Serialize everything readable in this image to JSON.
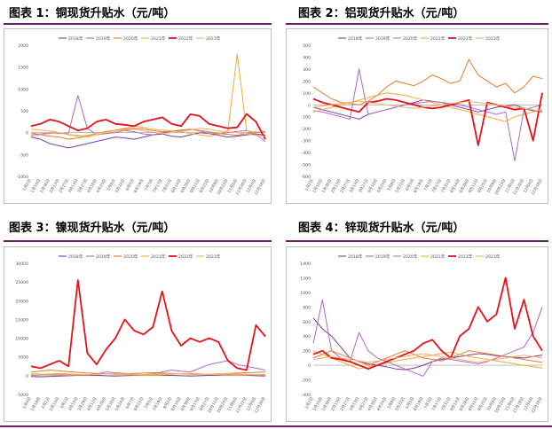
{
  "titles": [
    "图表 1：铜现货升贴水（元/吨）",
    "图表 2：铝现货升贴水（元/吨）",
    "图表 3：镍现货升贴水（元/吨）",
    "图表 4：锌现货升贴水（元/吨）"
  ],
  "colors": {
    "2018": "#7b3fa0",
    "2019": "#a96ad0",
    "2020": "#e37b2e",
    "2021": "#f3a93a",
    "2022": "#e8101a",
    "2023": "#f5b06a",
    "rule": "#6b1f6f"
  },
  "chart_data": [
    {
      "type": "line",
      "title": "图表 1：铜现货升贴水（元/吨）",
      "legend": [
        "2018年",
        "2019年",
        "2020年",
        "2021年",
        "2022年",
        "2023年"
      ],
      "legend_position": "top",
      "ylim": [
        -1000,
        2000
      ],
      "yticks": [
        "2000",
        "1500",
        "1000",
        "500",
        "0",
        "-500",
        "-1000"
      ],
      "xlabels": [
        "1月2日",
        "1月16日",
        "1月30日",
        "2月13日",
        "2月27日",
        "3月13日",
        "3月27日",
        "4月10日",
        "4月24日",
        "5月8日",
        "5月22日",
        "6月5日",
        "6月19日",
        "7月3日",
        "7月17日",
        "7月31日",
        "8月14日",
        "8月28日",
        "9月11日",
        "9月25日",
        "10月9日",
        "10月23日",
        "11月6日",
        "11月20日",
        "12月4日",
        "12月18日"
      ],
      "series": [
        {
          "name": "2018年",
          "values": [
            -100,
            -150,
            -250,
            -300,
            -350,
            -300,
            -250,
            -200,
            -150,
            -100,
            -120,
            -150,
            -100,
            -50,
            -30,
            -80,
            -100,
            -50,
            0,
            -20,
            -60,
            -100,
            -80,
            -50,
            -30,
            -60
          ]
        },
        {
          "name": "2019年",
          "values": [
            -50,
            -30,
            0,
            -20,
            -10,
            850,
            100,
            -50,
            -20,
            0,
            50,
            20,
            -30,
            -50,
            0,
            30,
            50,
            80,
            40,
            -20,
            -30,
            0,
            30,
            50,
            -40,
            -200
          ]
        },
        {
          "name": "2020年",
          "values": [
            0,
            -50,
            -80,
            -100,
            -150,
            -120,
            -80,
            -20,
            30,
            60,
            80,
            100,
            80,
            50,
            20,
            40,
            60,
            80,
            50,
            20,
            -20,
            -40,
            -60,
            -20,
            0,
            30
          ]
        },
        {
          "name": "2021年",
          "values": [
            80,
            60,
            40,
            0,
            -50,
            -80,
            -60,
            -20,
            20,
            60,
            100,
            150,
            120,
            80,
            60,
            40,
            20,
            -20,
            -50,
            -80,
            -40,
            50,
            1800,
            40,
            20,
            0
          ]
        },
        {
          "name": "2022年",
          "values": [
            150,
            200,
            300,
            250,
            150,
            50,
            100,
            250,
            300,
            200,
            180,
            150,
            250,
            300,
            350,
            200,
            150,
            420,
            380,
            200,
            150,
            100,
            120,
            430,
            250,
            -150
          ]
        },
        {
          "name": "2023年",
          "values": [
            -80,
            -50,
            -20,
            0,
            -40,
            -60,
            -100,
            -50,
            0,
            30,
            60,
            80,
            40,
            10,
            -20,
            0,
            30,
            60,
            100,
            80,
            40,
            20,
            0,
            -30,
            -60,
            -80
          ]
        }
      ]
    },
    {
      "type": "line",
      "title": "图表 2：铝现货升贴水（元/吨）",
      "legend": [
        "2018年",
        "2019年",
        "2020年",
        "2021年",
        "2022年",
        "2023年"
      ],
      "legend_position": "top",
      "ylim": [
        -600,
        500
      ],
      "yticks": [
        "500",
        "400",
        "300",
        "200",
        "100",
        "0",
        "-100",
        "-200",
        "-300",
        "-400",
        "-500",
        "-600"
      ],
      "xlabels": [
        "1月2日",
        "1月16日",
        "1月30日",
        "2月13日",
        "2月27日",
        "3月13日",
        "3月27日",
        "4月10日",
        "4月24日",
        "5月8日",
        "5月22日",
        "6月5日",
        "6月19日",
        "7月3日",
        "7月17日",
        "7月31日",
        "8月14日",
        "8月28日",
        "9月11日",
        "9月25日",
        "10月9日",
        "10月23日",
        "11月6日",
        "11月20日",
        "12月4日",
        "12月18日"
      ],
      "series": [
        {
          "name": "2018年",
          "values": [
            -20,
            -40,
            -60,
            -80,
            -100,
            -120,
            -80,
            -60,
            -40,
            -20,
            0,
            20,
            40,
            30,
            20,
            0,
            -20,
            -40,
            -60,
            -40,
            -20,
            -10,
            0,
            -30,
            -50,
            -60
          ]
        },
        {
          "name": "2019年",
          "values": [
            -50,
            -60,
            -80,
            -100,
            -120,
            300,
            -80,
            -60,
            -40,
            -20,
            0,
            10,
            20,
            30,
            20,
            10,
            0,
            -20,
            -40,
            -60,
            -80,
            -60,
            -470,
            -40,
            -20,
            0
          ]
        },
        {
          "name": "2020年",
          "values": [
            150,
            100,
            50,
            20,
            10,
            0,
            30,
            80,
            150,
            200,
            180,
            160,
            200,
            250,
            220,
            180,
            200,
            380,
            250,
            200,
            150,
            180,
            100,
            150,
            240,
            220
          ]
        },
        {
          "name": "2021年",
          "values": [
            -60,
            -40,
            -20,
            0,
            20,
            40,
            60,
            80,
            100,
            90,
            80,
            60,
            40,
            20,
            0,
            -20,
            -40,
            -60,
            -80,
            -100,
            -120,
            -140,
            -100,
            -80,
            -60,
            -40
          ]
        },
        {
          "name": "2022年",
          "values": [
            50,
            20,
            0,
            -20,
            -40,
            -60,
            20,
            30,
            50,
            40,
            20,
            0,
            -20,
            -30,
            -20,
            0,
            20,
            40,
            -340,
            20,
            0,
            -20,
            -40,
            -30,
            -300,
            100
          ]
        },
        {
          "name": "2023年",
          "values": [
            -20,
            -10,
            0,
            10,
            20,
            30,
            20,
            10,
            0,
            -10,
            -20,
            -30,
            -20,
            -10,
            0,
            10,
            20,
            30,
            20,
            10,
            0,
            -10,
            -20,
            -30,
            -40,
            -50
          ]
        }
      ]
    },
    {
      "type": "line",
      "title": "图表 3：镍现货升贴水（元/吨）",
      "legend": [
        "2018年",
        "2019年",
        "2020年",
        "2021年",
        "2022年",
        "2023年"
      ],
      "legend_position": "top",
      "ylim": [
        -5000,
        30000
      ],
      "yticks": [
        "30000",
        "25000",
        "20000",
        "15000",
        "10000",
        "5000",
        "0",
        "-5000"
      ],
      "xlabels": [
        "1月4日",
        "1月18日",
        "2月1日",
        "2月15日",
        "3月1日",
        "3月15日",
        "3月29日",
        "4月12日",
        "4月26日",
        "5月10日",
        "5月24日",
        "6月7日",
        "6月21日",
        "7月5日",
        "7月19日",
        "8月2日",
        "8月16日",
        "8月30日",
        "9月13日",
        "9月27日",
        "10月11日",
        "10月25日",
        "11月8日",
        "11月22日",
        "12月6日",
        "12月20日"
      ],
      "series": [
        {
          "name": "2018年",
          "values": [
            -200,
            -300,
            -200,
            -100,
            0,
            100,
            200,
            100,
            0,
            -100,
            0,
            100,
            200,
            300,
            200,
            100,
            0,
            -100,
            0,
            100,
            200,
            300,
            200,
            100,
            0,
            -100
          ]
        },
        {
          "name": "2019年",
          "values": [
            200,
            300,
            400,
            500,
            400,
            300,
            200,
            500,
            1000,
            800,
            600,
            400,
            300,
            500,
            1000,
            1500,
            1200,
            1000,
            2000,
            3000,
            3500,
            4000,
            3000,
            2500,
            2000,
            1500
          ]
        },
        {
          "name": "2020年",
          "values": [
            1000,
            1200,
            1500,
            1300,
            1100,
            900,
            700,
            600,
            500,
            400,
            500,
            600,
            700,
            800,
            700,
            600,
            500,
            400,
            300,
            400,
            500,
            600,
            700,
            800,
            900,
            1000
          ]
        },
        {
          "name": "2021年",
          "values": [
            500,
            400,
            300,
            200,
            100,
            200,
            300,
            400,
            500,
            400,
            300,
            200,
            100,
            200,
            300,
            400,
            500,
            600,
            500,
            400,
            300,
            200,
            100,
            200,
            300,
            400
          ]
        },
        {
          "name": "2022年",
          "values": [
            2500,
            2000,
            3000,
            4000,
            2500,
            25500,
            6000,
            3000,
            7000,
            10000,
            15000,
            12000,
            11000,
            13000,
            22500,
            12000,
            8000,
            10000,
            9000,
            10000,
            9000,
            4000,
            2000,
            1500,
            13500,
            10500
          ]
        },
        {
          "name": "2023年",
          "values": [
            300,
            400,
            500,
            600,
            500,
            400,
            300,
            400,
            500,
            600,
            500,
            400,
            300,
            400,
            500,
            600,
            500,
            400,
            300,
            400,
            500,
            600,
            500,
            400,
            300,
            200
          ]
        }
      ]
    },
    {
      "type": "line",
      "title": "图表 4：锌现货升贴水（元/吨）",
      "legend": [
        "2018年",
        "2019年",
        "2020年",
        "2021年",
        "2022年",
        "2023年"
      ],
      "legend_position": "top",
      "ylim": [
        -400,
        1400
      ],
      "yticks": [
        "1400",
        "1200",
        "1000",
        "800",
        "600",
        "400",
        "200",
        "0",
        "-200",
        "-400"
      ],
      "xlabels": [
        "1月2日",
        "1月16日",
        "1月30日",
        "2月13日",
        "2月27日",
        "3月13日",
        "3月27日",
        "4月10日",
        "4月24日",
        "5月8日",
        "5月22日",
        "6月5日",
        "6月19日",
        "7月3日",
        "7月17日",
        "7月31日",
        "8月14日",
        "8月28日",
        "9月11日",
        "9月25日",
        "10月9日",
        "10月23日",
        "11月6日",
        "11月20日",
        "12月4日",
        "12月18日"
      ],
      "series": [
        {
          "name": "2018年",
          "values": [
            650,
            500,
            400,
            250,
            100,
            50,
            20,
            0,
            -20,
            -50,
            -60,
            -40,
            0,
            50,
            80,
            100,
            120,
            140,
            160,
            150,
            130,
            120,
            110,
            100,
            120,
            140
          ]
        },
        {
          "name": "2019年",
          "values": [
            300,
            900,
            200,
            100,
            50,
            450,
            200,
            100,
            50,
            0,
            -50,
            -100,
            -150,
            50,
            100,
            80,
            60,
            40,
            20,
            50,
            100,
            150,
            200,
            250,
            450,
            800
          ]
        },
        {
          "name": "2020年",
          "values": [
            100,
            150,
            200,
            150,
            100,
            50,
            0,
            50,
            100,
            150,
            200,
            150,
            100,
            80,
            60,
            100,
            150,
            200,
            180,
            160,
            140,
            120,
            100,
            80,
            60,
            40
          ]
        },
        {
          "name": "2021年",
          "values": [
            200,
            150,
            100,
            50,
            0,
            -50,
            -20,
            0,
            30,
            60,
            80,
            100,
            120,
            140,
            160,
            180,
            150,
            120,
            100,
            80,
            60,
            40,
            20,
            0,
            -20,
            -40
          ]
        },
        {
          "name": "2022年",
          "values": [
            150,
            200,
            100,
            80,
            50,
            0,
            -50,
            0,
            50,
            100,
            150,
            200,
            300,
            350,
            200,
            100,
            400,
            500,
            800,
            600,
            700,
            1200,
            500,
            900,
            400,
            200
          ]
        },
        {
          "name": "2023年",
          "values": [
            80,
            100,
            120,
            100,
            80,
            60,
            40,
            60,
            80,
            100,
            120,
            140,
            160,
            140,
            120,
            100,
            80,
            60,
            40,
            60,
            80,
            100,
            120,
            140,
            120,
            100
          ]
        }
      ]
    }
  ]
}
